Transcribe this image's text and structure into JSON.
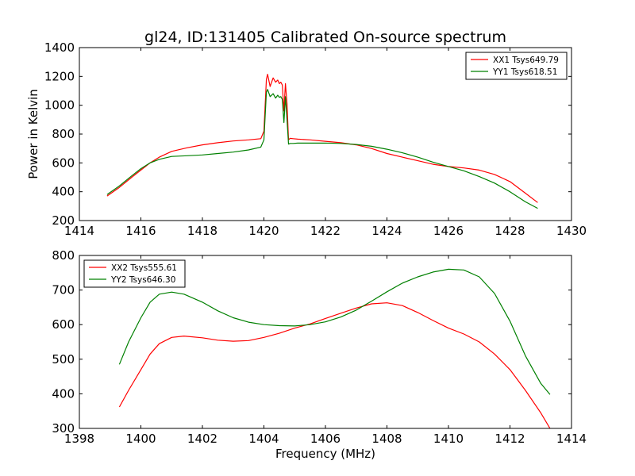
{
  "figure_title": "gl24, ID:131405 Calibrated On-source spectrum",
  "chart_data": [
    {
      "type": "line",
      "title": "gl24, ID:131405 Calibrated On-source spectrum",
      "xlabel": "",
      "ylabel": "Power in Kelvin",
      "xlim": [
        1414,
        1430
      ],
      "ylim": [
        200,
        1400
      ],
      "xticks": [
        1414,
        1416,
        1418,
        1420,
        1422,
        1424,
        1426,
        1428,
        1430
      ],
      "yticks": [
        200,
        400,
        600,
        800,
        1000,
        1200,
        1400
      ],
      "grid": false,
      "legend": "top-right",
      "series": [
        {
          "name": "XX1 Tsys649.79",
          "color": "#ff0000",
          "x": [
            1414.9,
            1415.3,
            1415.7,
            1416.0,
            1416.3,
            1416.6,
            1417.0,
            1417.5,
            1418.0,
            1418.5,
            1419.0,
            1419.5,
            1419.9,
            1420.0,
            1420.08,
            1420.12,
            1420.2,
            1420.3,
            1420.38,
            1420.45,
            1420.5,
            1420.55,
            1420.6,
            1420.65,
            1420.7,
            1420.75,
            1420.8,
            1420.85,
            1420.95,
            1421.1,
            1421.5,
            1422.0,
            1422.5,
            1423.0,
            1423.5,
            1424.0,
            1424.5,
            1425.0,
            1425.5,
            1426.0,
            1426.5,
            1427.0,
            1427.5,
            1428.0,
            1428.5,
            1428.9
          ],
          "y": [
            370,
            430,
            500,
            550,
            600,
            640,
            680,
            705,
            725,
            740,
            752,
            760,
            768,
            820,
            1180,
            1215,
            1130,
            1190,
            1160,
            1175,
            1150,
            1160,
            1140,
            960,
            1150,
            1010,
            760,
            770,
            768,
            765,
            760,
            750,
            740,
            725,
            700,
            665,
            640,
            615,
            590,
            575,
            565,
            550,
            520,
            470,
            390,
            325
          ]
        },
        {
          "name": "YY1 Tsys618.51",
          "color": "#008000",
          "x": [
            1414.9,
            1415.3,
            1415.7,
            1416.0,
            1416.3,
            1416.6,
            1417.0,
            1417.5,
            1418.0,
            1418.5,
            1419.0,
            1419.5,
            1419.9,
            1420.0,
            1420.08,
            1420.12,
            1420.2,
            1420.3,
            1420.38,
            1420.45,
            1420.5,
            1420.55,
            1420.6,
            1420.65,
            1420.7,
            1420.75,
            1420.8,
            1420.85,
            1420.95,
            1421.1,
            1421.5,
            1422.0,
            1422.5,
            1423.0,
            1423.5,
            1424.0,
            1424.5,
            1425.0,
            1425.5,
            1426.0,
            1426.5,
            1427.0,
            1427.5,
            1428.0,
            1428.5,
            1428.9
          ],
          "y": [
            380,
            440,
            510,
            560,
            600,
            625,
            645,
            650,
            655,
            665,
            675,
            690,
            710,
            760,
            1090,
            1110,
            1060,
            1080,
            1050,
            1070,
            1055,
            1060,
            1040,
            880,
            1060,
            900,
            730,
            735,
            735,
            737,
            737,
            738,
            735,
            728,
            715,
            695,
            670,
            640,
            605,
            575,
            545,
            505,
            460,
            400,
            330,
            285
          ]
        }
      ]
    },
    {
      "type": "line",
      "title": "",
      "xlabel": "Frequency (MHz)",
      "ylabel": "",
      "xlim": [
        1398,
        1414
      ],
      "ylim": [
        300,
        800
      ],
      "xticks": [
        1398,
        1400,
        1402,
        1404,
        1406,
        1408,
        1410,
        1412,
        1414
      ],
      "yticks": [
        300,
        400,
        500,
        600,
        700,
        800
      ],
      "grid": false,
      "legend": "top-left",
      "series": [
        {
          "name": "XX2 Tsys555.61",
          "color": "#ff0000",
          "x": [
            1399.3,
            1399.6,
            1400.0,
            1400.3,
            1400.6,
            1401.0,
            1401.4,
            1402.0,
            1402.5,
            1403.0,
            1403.5,
            1404.0,
            1404.5,
            1405.0,
            1405.5,
            1406.0,
            1406.5,
            1407.0,
            1407.5,
            1408.0,
            1408.5,
            1409.0,
            1409.5,
            1410.0,
            1410.5,
            1411.0,
            1411.5,
            1412.0,
            1412.5,
            1413.0,
            1413.3
          ],
          "y": [
            362,
            410,
            470,
            515,
            545,
            563,
            567,
            562,
            555,
            552,
            554,
            563,
            575,
            590,
            602,
            618,
            633,
            648,
            660,
            663,
            655,
            635,
            612,
            590,
            573,
            550,
            515,
            470,
            410,
            345,
            300
          ]
        },
        {
          "name": "YY2 Tsys646.30",
          "color": "#008000",
          "x": [
            1399.3,
            1399.6,
            1400.0,
            1400.3,
            1400.6,
            1401.0,
            1401.4,
            1402.0,
            1402.5,
            1403.0,
            1403.5,
            1404.0,
            1404.5,
            1405.0,
            1405.5,
            1406.0,
            1406.5,
            1407.0,
            1407.5,
            1408.0,
            1408.5,
            1409.0,
            1409.5,
            1410.0,
            1410.5,
            1411.0,
            1411.5,
            1412.0,
            1412.5,
            1413.0,
            1413.3
          ],
          "y": [
            485,
            550,
            620,
            665,
            688,
            694,
            688,
            665,
            640,
            620,
            607,
            600,
            597,
            596,
            600,
            608,
            622,
            642,
            668,
            695,
            720,
            738,
            752,
            760,
            758,
            738,
            690,
            610,
            510,
            430,
            398
          ]
        }
      ]
    }
  ]
}
